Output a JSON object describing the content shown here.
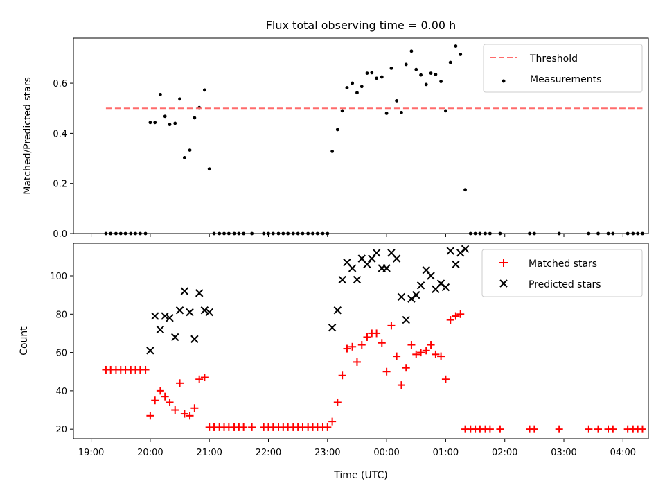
{
  "chart_data": [
    {
      "type": "scatter",
      "title": "Flux total observing time = 0.00 h",
      "xlabel": "",
      "ylabel": "Matched/Predicted stars",
      "xlim": [
        -0.3,
        9.43
      ],
      "ylim": [
        0,
        0.78
      ],
      "yticks": [
        0.0,
        0.2,
        0.4,
        0.6
      ],
      "ytick_labels": [
        "0.0",
        "0.2",
        "0.4",
        "0.6"
      ],
      "legend_position": "top-right",
      "grid": false,
      "threshold": {
        "name": "Threshold",
        "value": 0.5,
        "x": [
          0.25,
          9.33
        ],
        "color": "#ff6b6b"
      },
      "series": [
        {
          "name": "Measurements",
          "color": "#000000",
          "points": [
            [
              0.25,
              0
            ],
            [
              0.33,
              0
            ],
            [
              0.42,
              0
            ],
            [
              0.5,
              0
            ],
            [
              0.58,
              0
            ],
            [
              0.67,
              0
            ],
            [
              0.75,
              0
            ],
            [
              0.83,
              0
            ],
            [
              0.92,
              0
            ],
            [
              1.0,
              0.443
            ],
            [
              1.08,
              0.443
            ],
            [
              1.17,
              0.555
            ],
            [
              1.25,
              0.468
            ],
            [
              1.33,
              0.435
            ],
            [
              1.42,
              0.44
            ],
            [
              1.5,
              0.537
            ],
            [
              1.58,
              0.303
            ],
            [
              1.67,
              0.333
            ],
            [
              1.75,
              0.462
            ],
            [
              1.83,
              0.503
            ],
            [
              1.92,
              0.573
            ],
            [
              2.0,
              0.258
            ],
            [
              2.08,
              0
            ],
            [
              2.17,
              0
            ],
            [
              2.25,
              0
            ],
            [
              2.33,
              0
            ],
            [
              2.42,
              0
            ],
            [
              2.5,
              0
            ],
            [
              2.58,
              0
            ],
            [
              2.72,
              0
            ],
            [
              2.92,
              0
            ],
            [
              3.0,
              0
            ],
            [
              3.08,
              0
            ],
            [
              3.17,
              0
            ],
            [
              3.25,
              0
            ],
            [
              3.33,
              0
            ],
            [
              3.42,
              0
            ],
            [
              3.5,
              0
            ],
            [
              3.58,
              0
            ],
            [
              3.67,
              0
            ],
            [
              3.75,
              0
            ],
            [
              3.83,
              0
            ],
            [
              3.92,
              0
            ],
            [
              4.0,
              0
            ],
            [
              4.08,
              0.328
            ],
            [
              4.17,
              0.415
            ],
            [
              4.25,
              0.49
            ],
            [
              4.33,
              0.582
            ],
            [
              4.42,
              0.6
            ],
            [
              4.5,
              0.562
            ],
            [
              4.58,
              0.587
            ],
            [
              4.67,
              0.64
            ],
            [
              4.75,
              0.642
            ],
            [
              4.83,
              0.62
            ],
            [
              4.92,
              0.625
            ],
            [
              5.0,
              0.48
            ],
            [
              5.08,
              0.66
            ],
            [
              5.17,
              0.53
            ],
            [
              5.25,
              0.483
            ],
            [
              5.33,
              0.675
            ],
            [
              5.42,
              0.728
            ],
            [
              5.5,
              0.655
            ],
            [
              5.58,
              0.633
            ],
            [
              5.67,
              0.595
            ],
            [
              5.75,
              0.64
            ],
            [
              5.83,
              0.635
            ],
            [
              5.92,
              0.607
            ],
            [
              6.0,
              0.49
            ],
            [
              6.08,
              0.683
            ],
            [
              6.17,
              0.748
            ],
            [
              6.25,
              0.715
            ],
            [
              6.33,
              0.175
            ],
            [
              6.42,
              0
            ],
            [
              6.5,
              0
            ],
            [
              6.58,
              0
            ],
            [
              6.67,
              0
            ],
            [
              6.75,
              0
            ],
            [
              6.92,
              0
            ],
            [
              7.42,
              0
            ],
            [
              7.5,
              0
            ],
            [
              7.92,
              0
            ],
            [
              8.42,
              0
            ],
            [
              8.58,
              0
            ],
            [
              8.75,
              0
            ],
            [
              8.83,
              0
            ],
            [
              9.08,
              0
            ],
            [
              9.17,
              0
            ],
            [
              9.25,
              0
            ],
            [
              9.33,
              0
            ]
          ]
        }
      ]
    },
    {
      "type": "scatter",
      "title": "",
      "xlabel": "Time (UTC)",
      "ylabel": "Count",
      "xlim": [
        -0.3,
        9.43
      ],
      "ylim": [
        15,
        117
      ],
      "xticks": [
        0,
        1,
        2,
        3,
        4,
        5,
        6,
        7,
        8,
        9
      ],
      "xtick_labels": [
        "19:00",
        "20:00",
        "21:00",
        "22:00",
        "23:00",
        "00:00",
        "01:00",
        "02:00",
        "03:00",
        "04:00"
      ],
      "yticks": [
        20,
        40,
        60,
        80,
        100
      ],
      "ytick_labels": [
        "20",
        "40",
        "60",
        "80",
        "100"
      ],
      "legend_position": "top-right",
      "grid": false,
      "series": [
        {
          "name": "Matched stars",
          "marker": "plus",
          "color": "#ff0000",
          "points": [
            [
              0.25,
              51
            ],
            [
              0.33,
              51
            ],
            [
              0.42,
              51
            ],
            [
              0.5,
              51
            ],
            [
              0.58,
              51
            ],
            [
              0.67,
              51
            ],
            [
              0.75,
              51
            ],
            [
              0.83,
              51
            ],
            [
              0.92,
              51
            ],
            [
              1.0,
              27
            ],
            [
              1.08,
              35
            ],
            [
              1.17,
              40
            ],
            [
              1.25,
              37
            ],
            [
              1.33,
              34
            ],
            [
              1.42,
              30
            ],
            [
              1.5,
              44
            ],
            [
              1.58,
              28
            ],
            [
              1.67,
              27
            ],
            [
              1.75,
              31
            ],
            [
              1.83,
              46
            ],
            [
              1.92,
              47
            ],
            [
              2.0,
              21
            ],
            [
              2.08,
              21
            ],
            [
              2.17,
              21
            ],
            [
              2.25,
              21
            ],
            [
              2.33,
              21
            ],
            [
              2.42,
              21
            ],
            [
              2.5,
              21
            ],
            [
              2.58,
              21
            ],
            [
              2.72,
              21
            ],
            [
              2.92,
              21
            ],
            [
              3.0,
              21
            ],
            [
              3.08,
              21
            ],
            [
              3.17,
              21
            ],
            [
              3.25,
              21
            ],
            [
              3.33,
              21
            ],
            [
              3.42,
              21
            ],
            [
              3.5,
              21
            ],
            [
              3.58,
              21
            ],
            [
              3.67,
              21
            ],
            [
              3.75,
              21
            ],
            [
              3.83,
              21
            ],
            [
              3.92,
              21
            ],
            [
              4.0,
              21
            ],
            [
              4.08,
              24
            ],
            [
              4.17,
              34
            ],
            [
              4.25,
              48
            ],
            [
              4.33,
              62
            ],
            [
              4.42,
              63
            ],
            [
              4.5,
              55
            ],
            [
              4.58,
              64
            ],
            [
              4.67,
              68
            ],
            [
              4.75,
              70
            ],
            [
              4.83,
              70
            ],
            [
              4.92,
              65
            ],
            [
              5.0,
              50
            ],
            [
              5.08,
              74
            ],
            [
              5.17,
              58
            ],
            [
              5.25,
              43
            ],
            [
              5.33,
              52
            ],
            [
              5.42,
              64
            ],
            [
              5.5,
              59
            ],
            [
              5.58,
              60
            ],
            [
              5.67,
              61
            ],
            [
              5.75,
              64
            ],
            [
              5.83,
              59
            ],
            [
              5.92,
              58
            ],
            [
              6.0,
              46
            ],
            [
              6.08,
              77
            ],
            [
              6.17,
              79
            ],
            [
              6.25,
              80
            ],
            [
              6.33,
              20
            ],
            [
              6.42,
              20
            ],
            [
              6.5,
              20
            ],
            [
              6.58,
              20
            ],
            [
              6.67,
              20
            ],
            [
              6.75,
              20
            ],
            [
              6.92,
              20
            ],
            [
              7.42,
              20
            ],
            [
              7.5,
              20
            ],
            [
              7.92,
              20
            ],
            [
              8.42,
              20
            ],
            [
              8.58,
              20
            ],
            [
              8.75,
              20
            ],
            [
              8.83,
              20
            ],
            [
              9.08,
              20
            ],
            [
              9.17,
              20
            ],
            [
              9.25,
              20
            ],
            [
              9.33,
              20
            ]
          ]
        },
        {
          "name": "Predicted stars",
          "marker": "x",
          "color": "#000000",
          "points": [
            [
              1.0,
              61
            ],
            [
              1.08,
              79
            ],
            [
              1.17,
              72
            ],
            [
              1.25,
              79
            ],
            [
              1.33,
              78
            ],
            [
              1.42,
              68
            ],
            [
              1.5,
              82
            ],
            [
              1.58,
              92
            ],
            [
              1.67,
              81
            ],
            [
              1.75,
              67
            ],
            [
              1.83,
              91
            ],
            [
              1.92,
              82
            ],
            [
              2.0,
              81
            ],
            [
              4.08,
              73
            ],
            [
              4.17,
              82
            ],
            [
              4.25,
              98
            ],
            [
              4.33,
              107
            ],
            [
              4.42,
              104
            ],
            [
              4.5,
              98
            ],
            [
              4.58,
              109
            ],
            [
              4.67,
              106
            ],
            [
              4.75,
              109
            ],
            [
              4.83,
              112
            ],
            [
              4.92,
              104
            ],
            [
              5.0,
              104
            ],
            [
              5.08,
              112
            ],
            [
              5.17,
              109
            ],
            [
              5.25,
              89
            ],
            [
              5.33,
              77
            ],
            [
              5.42,
              88
            ],
            [
              5.5,
              90
            ],
            [
              5.58,
              95
            ],
            [
              5.67,
              103
            ],
            [
              5.75,
              100
            ],
            [
              5.83,
              93
            ],
            [
              5.92,
              96
            ],
            [
              6.0,
              94
            ],
            [
              6.08,
              113
            ],
            [
              6.17,
              106
            ],
            [
              6.25,
              112
            ],
            [
              6.33,
              114
            ]
          ]
        }
      ]
    }
  ]
}
